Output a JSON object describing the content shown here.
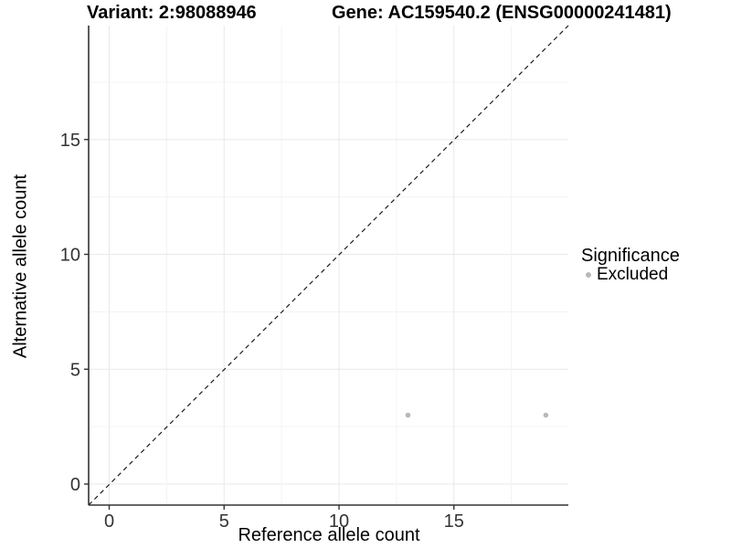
{
  "titles": {
    "variant": "Variant: 2:98088946",
    "gene": "Gene: AC159540.2 (ENSG00000241481)"
  },
  "axes": {
    "x": {
      "title": "Reference allele count"
    },
    "y": {
      "title": "Alternative allele count"
    }
  },
  "legend": {
    "title": "Significance",
    "items": [
      {
        "label": "Excluded",
        "color": "#b8b8b8"
      }
    ]
  },
  "colors": {
    "point": "#b8b8b8",
    "axis": "#333333",
    "tick_label": "#333333",
    "grid_major": "#e8e8e8",
    "grid_minor": "#f3f3f3",
    "identity_line": "#1a1a1a",
    "title": "#000000"
  },
  "chart_data": {
    "type": "scatter",
    "title": "Variant: 2:98088946   Gene: AC159540.2 (ENSG00000241481)",
    "xlabel": "Reference allele count",
    "ylabel": "Alternative allele count",
    "xlim": [
      -0.95,
      19.95
    ],
    "ylim": [
      -0.95,
      19.95
    ],
    "x_ticks": [
      0,
      5,
      10,
      15
    ],
    "y_ticks": [
      0,
      5,
      10,
      15
    ],
    "grid": {
      "visible": true,
      "major_step": 5,
      "minor_step": 2.5
    },
    "legend_position": "right",
    "reference_line": {
      "type": "identity y=x",
      "style": "dashed",
      "color": "#1a1a1a"
    },
    "series": [
      {
        "name": "Excluded",
        "color": "#b8b8b8",
        "points": [
          {
            "x": 13,
            "y": 3
          },
          {
            "x": 19,
            "y": 3
          }
        ]
      }
    ]
  }
}
